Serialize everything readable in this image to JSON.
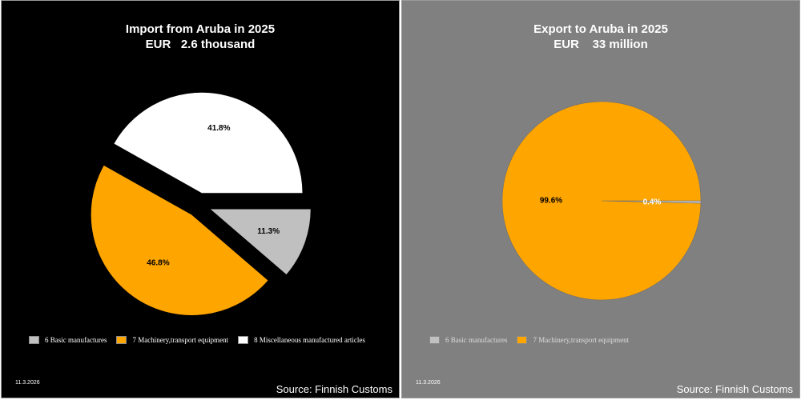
{
  "chart_data": [
    {
      "type": "pie",
      "title": [
        "Import from Aruba in 2025",
        "EUR   2.6 thousand"
      ],
      "slices": [
        {
          "name": "6 Basic manufactures",
          "value": 11.3,
          "label": "11.3%",
          "color": "#c0c0c0"
        },
        {
          "name": "7 Machinery,transport equipment",
          "value": 46.8,
          "label": "46.8%",
          "color": "#ffa500"
        },
        {
          "name": "8 Miscellaneous manufactured articles",
          "value": 41.8,
          "label": "41.8%",
          "color": "#ffffff"
        }
      ],
      "legend": "bottom",
      "background": "#000000",
      "exploded": true
    },
    {
      "type": "pie",
      "title": [
        "Export to Aruba in 2025",
        "EUR    33 million"
      ],
      "slices": [
        {
          "name": "6 Basic manufactures",
          "value": 0.4,
          "label": "0.4%",
          "color": "#c0c0c0"
        },
        {
          "name": "7 Machinery,transport equipment",
          "value": 99.6,
          "label": "99.6%",
          "color": "#ffa500"
        }
      ],
      "legend": "bottom",
      "background": "#808080",
      "exploded": false
    }
  ],
  "footer": {
    "date": "11.3.2026",
    "source": "Source: Finnish Customs"
  }
}
